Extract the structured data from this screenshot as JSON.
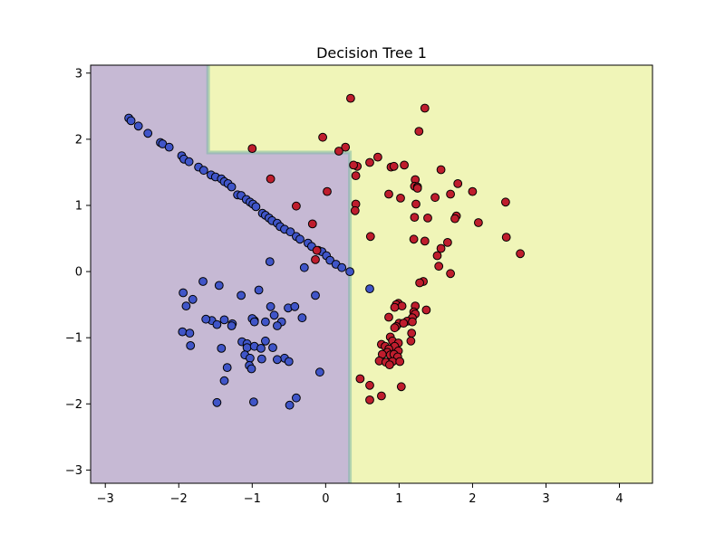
{
  "chart_data": {
    "type": "scatter",
    "title": "Decision Tree 1",
    "xlabel": "",
    "ylabel": "",
    "xlim": [
      -3.2,
      4.45
    ],
    "ylim": [
      -3.2,
      3.12
    ],
    "x_ticks": [
      -3,
      -2,
      -1,
      0,
      1,
      2,
      3,
      4
    ],
    "y_ticks": [
      -3,
      -2,
      -1,
      0,
      1,
      2,
      3
    ],
    "grid": false,
    "legend": "none",
    "decision_regions": [
      {
        "class": "blue",
        "color": "#c6b9d4",
        "rule": "x < 0.33, except x >= -1.6 and y >= 1.8"
      },
      {
        "class": "red",
        "color": "#f0f5b8",
        "rule": "x >= 0.33, or x >= -1.6 and y >= 1.8"
      }
    ],
    "series": [
      {
        "name": "",
        "color": "#4055c8",
        "points": [
          [
            -2.68,
            2.32
          ],
          [
            -2.65,
            2.28
          ],
          [
            -2.55,
            2.2
          ],
          [
            -2.42,
            2.09
          ],
          [
            -2.25,
            1.95
          ],
          [
            -2.22,
            1.93
          ],
          [
            -2.13,
            1.88
          ],
          [
            -1.96,
            1.75
          ],
          [
            -1.93,
            1.7
          ],
          [
            -1.86,
            1.66
          ],
          [
            -1.73,
            1.58
          ],
          [
            -1.66,
            1.53
          ],
          [
            -1.56,
            1.46
          ],
          [
            -1.5,
            1.43
          ],
          [
            -1.42,
            1.4
          ],
          [
            -1.38,
            1.36
          ],
          [
            -1.33,
            1.33
          ],
          [
            -1.28,
            1.28
          ],
          [
            -1.2,
            1.16
          ],
          [
            -1.15,
            1.15
          ],
          [
            -1.08,
            1.09
          ],
          [
            -1.03,
            1.05
          ],
          [
            -0.99,
            1.02
          ],
          [
            -0.95,
            0.98
          ],
          [
            -0.86,
            0.88
          ],
          [
            -0.82,
            0.85
          ],
          [
            -0.77,
            0.81
          ],
          [
            -0.73,
            0.77
          ],
          [
            -0.66,
            0.73
          ],
          [
            -0.62,
            0.68
          ],
          [
            -0.56,
            0.64
          ],
          [
            -0.48,
            0.6
          ],
          [
            -0.4,
            0.53
          ],
          [
            -0.35,
            0.49
          ],
          [
            -0.24,
            0.43
          ],
          [
            -0.19,
            0.38
          ],
          [
            -0.1,
            0.32
          ],
          [
            -0.05,
            0.3
          ],
          [
            0.01,
            0.24
          ],
          [
            0.06,
            0.17
          ],
          [
            0.14,
            0.11
          ],
          [
            0.22,
            0.06
          ],
          [
            0.33,
            0.0
          ],
          [
            -0.76,
            0.15
          ],
          [
            -0.29,
            0.06
          ],
          [
            0.6,
            -0.26
          ],
          [
            -1.94,
            -0.32
          ],
          [
            -1.81,
            -0.42
          ],
          [
            -1.67,
            -0.15
          ],
          [
            -1.55,
            -0.74
          ],
          [
            -1.45,
            -0.21
          ],
          [
            -1.27,
            -0.79
          ],
          [
            -1.15,
            -0.36
          ],
          [
            -0.97,
            -0.74
          ],
          [
            -0.91,
            -0.28
          ],
          [
            -0.75,
            -0.53
          ],
          [
            -0.7,
            -0.66
          ],
          [
            -0.6,
            -0.76
          ],
          [
            -0.51,
            -0.55
          ],
          [
            -0.42,
            -0.53
          ],
          [
            -0.32,
            -0.7
          ],
          [
            -0.14,
            -0.36
          ],
          [
            -1.9,
            -0.52
          ],
          [
            -1.63,
            -0.72
          ],
          [
            -1.48,
            -0.8
          ],
          [
            -1.38,
            -0.73
          ],
          [
            -1.28,
            -0.82
          ],
          [
            -1.0,
            -0.71
          ],
          [
            -0.97,
            -0.76
          ],
          [
            -0.82,
            -0.76
          ],
          [
            -0.66,
            -0.82
          ],
          [
            -1.95,
            -0.91
          ],
          [
            -1.85,
            -0.93
          ],
          [
            -1.84,
            -1.12
          ],
          [
            -1.42,
            -1.16
          ],
          [
            -1.14,
            -1.06
          ],
          [
            -1.07,
            -1.09
          ],
          [
            -1.07,
            -1.15
          ],
          [
            -0.97,
            -1.13
          ],
          [
            -0.88,
            -1.16
          ],
          [
            -0.82,
            -1.05
          ],
          [
            -0.72,
            -1.15
          ],
          [
            -0.56,
            -1.31
          ],
          [
            -1.1,
            -1.26
          ],
          [
            -1.03,
            -1.31
          ],
          [
            -0.87,
            -1.32
          ],
          [
            -0.66,
            -1.33
          ],
          [
            -0.5,
            -1.36
          ],
          [
            -1.34,
            -1.45
          ],
          [
            -1.04,
            -1.42
          ],
          [
            -1.01,
            -1.47
          ],
          [
            -1.38,
            -1.65
          ],
          [
            -0.08,
            -1.52
          ],
          [
            -0.98,
            -1.97
          ],
          [
            -1.48,
            -1.98
          ],
          [
            -0.49,
            -2.02
          ],
          [
            -0.4,
            -1.91
          ]
        ]
      },
      {
        "name": "",
        "color": "#bf1d2d",
        "points": [
          [
            0.34,
            2.62
          ],
          [
            1.35,
            2.47
          ],
          [
            -0.04,
            2.03
          ],
          [
            1.27,
            2.12
          ],
          [
            0.27,
            1.88
          ],
          [
            0.18,
            1.82
          ],
          [
            -1.0,
            1.86
          ],
          [
            0.71,
            1.73
          ],
          [
            0.6,
            1.65
          ],
          [
            0.43,
            1.59
          ],
          [
            0.38,
            1.61
          ],
          [
            0.89,
            1.58
          ],
          [
            0.93,
            1.59
          ],
          [
            1.07,
            1.61
          ],
          [
            1.57,
            1.54
          ],
          [
            0.41,
            1.45
          ],
          [
            1.22,
            1.39
          ],
          [
            1.8,
            1.33
          ],
          [
            1.21,
            1.29
          ],
          [
            1.25,
            1.28
          ],
          [
            1.25,
            1.26
          ],
          [
            2.0,
            1.21
          ],
          [
            -0.75,
            1.4
          ],
          [
            0.86,
            1.17
          ],
          [
            1.02,
            1.11
          ],
          [
            1.49,
            1.12
          ],
          [
            1.7,
            1.17
          ],
          [
            2.45,
            1.05
          ],
          [
            0.41,
            1.02
          ],
          [
            1.23,
            1.02
          ],
          [
            1.21,
            0.82
          ],
          [
            1.78,
            0.84
          ],
          [
            1.76,
            0.8
          ],
          [
            2.08,
            0.74
          ],
          [
            0.4,
            0.92
          ],
          [
            1.39,
            0.81
          ],
          [
            -0.4,
            0.99
          ],
          [
            0.02,
            1.21
          ],
          [
            -0.18,
            0.72
          ],
          [
            0.61,
            0.53
          ],
          [
            1.2,
            0.49
          ],
          [
            1.35,
            0.46
          ],
          [
            1.66,
            0.44
          ],
          [
            2.46,
            0.52
          ],
          [
            1.57,
            0.35
          ],
          [
            1.52,
            0.24
          ],
          [
            2.65,
            0.27
          ],
          [
            -0.12,
            0.32
          ],
          [
            -0.14,
            0.18
          ],
          [
            1.54,
            0.08
          ],
          [
            1.7,
            -0.03
          ],
          [
            1.33,
            -0.15
          ],
          [
            1.28,
            -0.17
          ],
          [
            0.99,
            -0.48
          ],
          [
            0.96,
            -0.5
          ],
          [
            1.04,
            -0.52
          ],
          [
            0.94,
            -0.54
          ],
          [
            1.22,
            -0.52
          ],
          [
            1.37,
            -0.58
          ],
          [
            0.86,
            -0.69
          ],
          [
            1.2,
            -0.61
          ],
          [
            1.22,
            -0.64
          ],
          [
            1.18,
            -0.7
          ],
          [
            1.11,
            -0.75
          ],
          [
            1.0,
            -0.78
          ],
          [
            1.06,
            -0.78
          ],
          [
            0.96,
            -0.83
          ],
          [
            0.94,
            -0.85
          ],
          [
            1.18,
            -0.76
          ],
          [
            1.17,
            -0.93
          ],
          [
            0.88,
            -0.99
          ],
          [
            0.91,
            -1.05
          ],
          [
            0.99,
            -1.08
          ],
          [
            0.76,
            -1.1
          ],
          [
            0.81,
            -1.13
          ],
          [
            0.94,
            -1.13
          ],
          [
            0.99,
            -1.2
          ],
          [
            0.86,
            -1.17
          ],
          [
            1.16,
            -1.05
          ],
          [
            0.84,
            -1.22
          ],
          [
            0.77,
            -1.25
          ],
          [
            0.88,
            -1.26
          ],
          [
            0.93,
            -1.25
          ],
          [
            0.98,
            -1.29
          ],
          [
            0.73,
            -1.35
          ],
          [
            0.82,
            -1.37
          ],
          [
            0.91,
            -1.36
          ],
          [
            1.01,
            -1.36
          ],
          [
            0.87,
            -1.41
          ],
          [
            0.47,
            -1.62
          ],
          [
            0.6,
            -1.72
          ],
          [
            1.03,
            -1.74
          ],
          [
            0.76,
            -1.88
          ],
          [
            0.6,
            -1.94
          ]
        ]
      }
    ]
  }
}
